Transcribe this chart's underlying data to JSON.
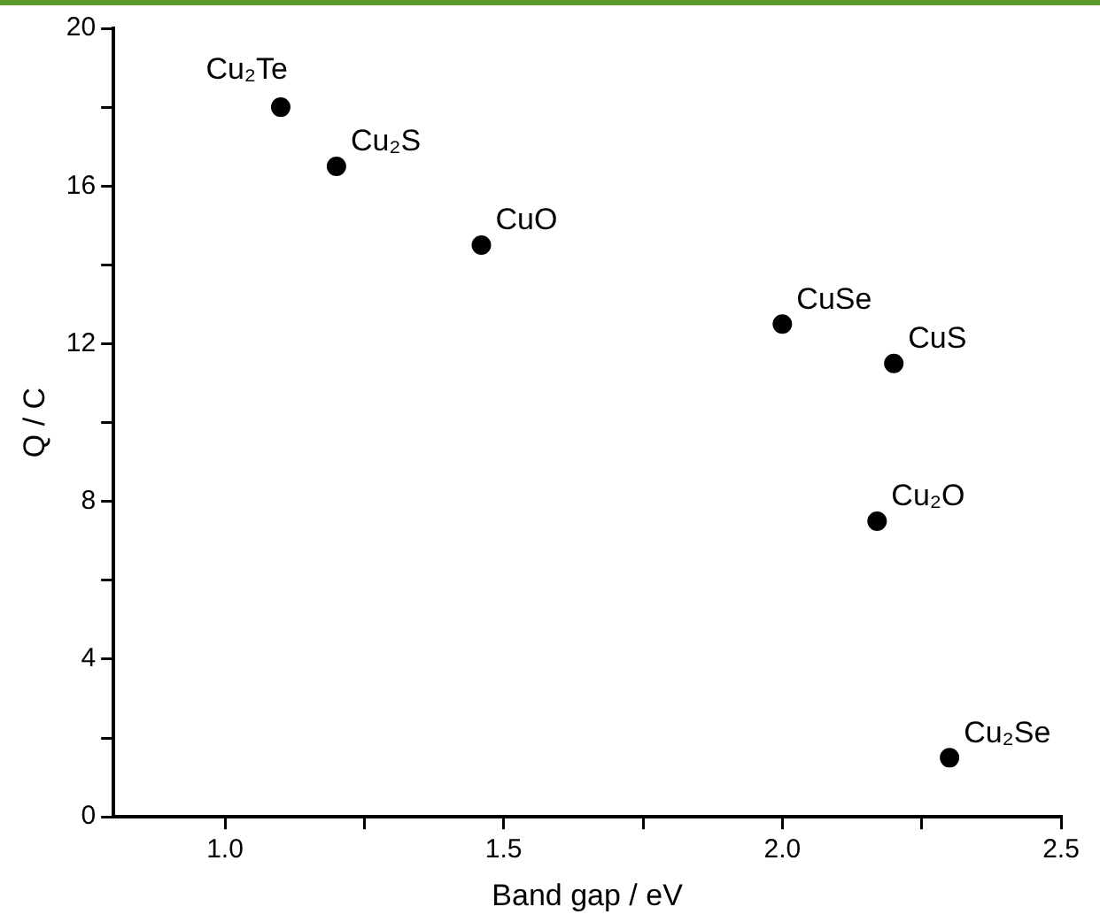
{
  "chart_data": {
    "type": "scatter",
    "xlabel": "Band gap / eV",
    "ylabel": "Q / C",
    "x": [
      1.1,
      1.2,
      1.46,
      2.0,
      2.2,
      2.17,
      2.3
    ],
    "series": [
      {
        "color": "#000000",
        "values": [
          18,
          16.5,
          14.5,
          12.5,
          11.5,
          7.5,
          1.5
        ]
      }
    ],
    "xlim": [
      0.8,
      2.5
    ],
    "xticks": [
      {
        "value": 1,
        "label": "1.0"
      },
      {
        "value": 1.25,
        "label": null
      },
      1.5,
      {
        "value": 1.75,
        "label": null
      },
      {
        "value": 2,
        "label": "2.0"
      },
      {
        "value": 2.25,
        "label": null
      },
      2.5
    ],
    "ylim": [
      0,
      20
    ],
    "yticks": [
      0,
      {
        "value": 2,
        "label": null
      },
      4,
      {
        "value": 6,
        "label": null
      },
      8,
      {
        "value": 10,
        "label": null
      },
      12,
      {
        "value": 14,
        "label": null
      },
      16,
      {
        "value": 18,
        "label": null
      },
      20
    ],
    "annotations": [
      {
        "text": "Cu₂Te",
        "x": 1.1,
        "y": 18
      },
      {
        "text": "Cu₂S",
        "x": 1.2,
        "y": 16.5
      },
      {
        "text": "CuO",
        "x": 1.46,
        "y": 14.5
      },
      {
        "text": "CuSe",
        "x": 2.0,
        "y": 12.5
      },
      {
        "text": "CuS",
        "x": 2.2,
        "y": 11.5
      },
      {
        "text": "Cu₂O",
        "x": 2.17,
        "y": 7.5
      },
      {
        "text": "Cu₂Se",
        "x": 2.3,
        "y": 1.5
      }
    ],
    "grid": false,
    "legend": false,
    "marker": "circle"
  }
}
